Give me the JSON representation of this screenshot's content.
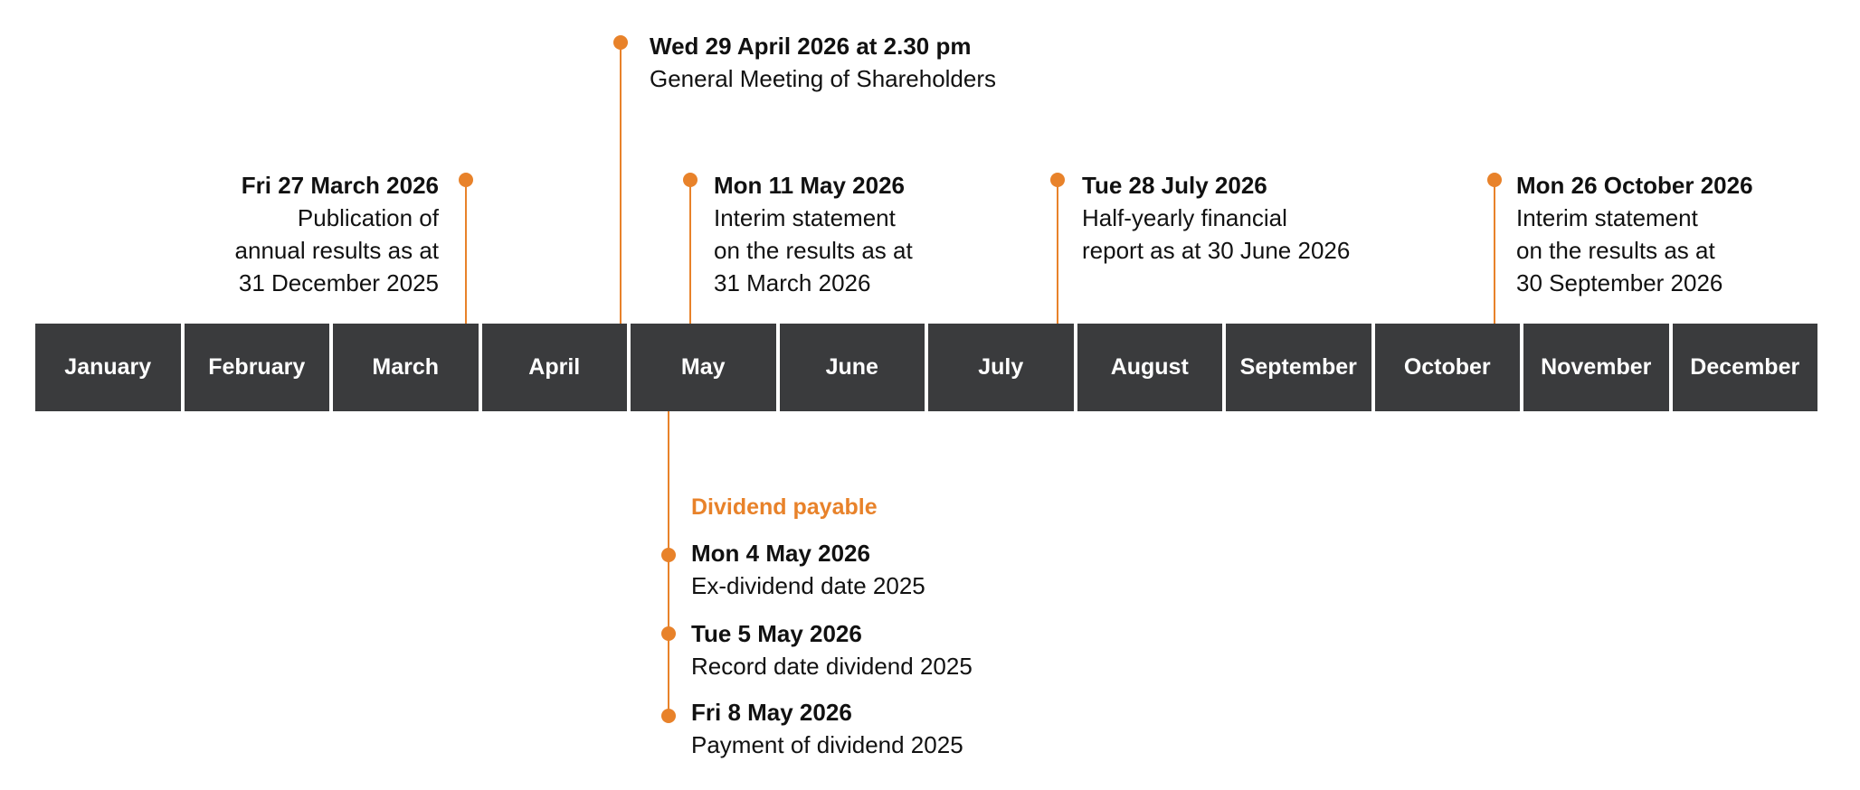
{
  "months": [
    "January",
    "February",
    "March",
    "April",
    "May",
    "June",
    "July",
    "August",
    "September",
    "October",
    "November",
    "December"
  ],
  "accent_color": "#e8822a",
  "bar_color": "#3a3b3d",
  "events": [
    {
      "date": "Fri 27 March 2026",
      "lines": [
        "Publication of",
        "annual results as at",
        "31 December 2025"
      ]
    },
    {
      "date": "Wed 29 April 2026 at 2.30 pm",
      "lines": [
        "General Meeting of Shareholders"
      ]
    },
    {
      "date": "Mon 11 May 2026",
      "lines": [
        "Interim statement",
        "on the results as at",
        "31 March 2026"
      ]
    },
    {
      "date": "Tue 28 July 2026",
      "lines": [
        "Half-yearly financial",
        "report as at 30 June 2026"
      ]
    },
    {
      "date": "Mon 26 October 2026",
      "lines": [
        "Interim statement",
        "on the results as at",
        "30 September 2026"
      ]
    }
  ],
  "dividend": {
    "title": "Dividend payable",
    "items": [
      {
        "date": "Mon 4 May 2026",
        "text": "Ex-dividend date 2025"
      },
      {
        "date": "Tue 5 May 2026",
        "text": "Record date dividend 2025"
      },
      {
        "date": "Fri 8 May 2026",
        "text": "Payment of dividend 2025"
      }
    ]
  }
}
